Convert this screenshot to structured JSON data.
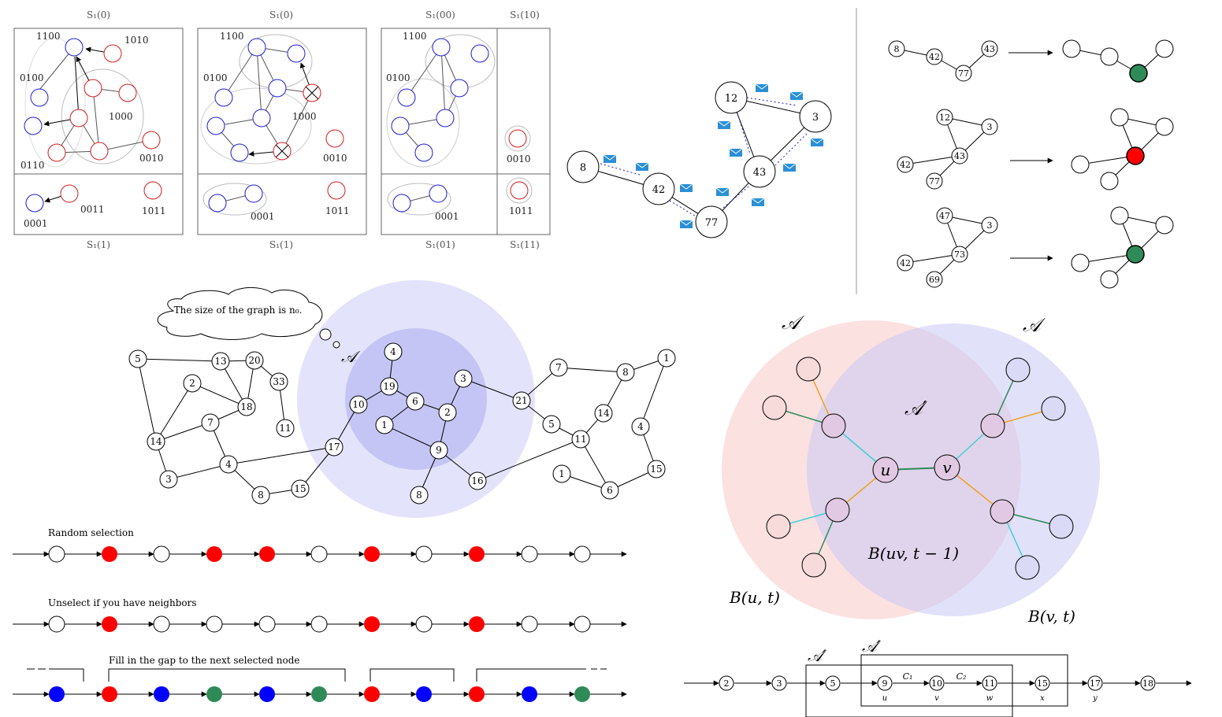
{
  "p1": {
    "top_labels": [
      "S₁(0)",
      "S₁(0)",
      "S₁(00)",
      "S₁(10)"
    ],
    "bottom_labels": [
      "S₁(1)",
      "S₁(1)",
      "S₁(01)",
      "S₁(11)"
    ],
    "a": [
      "1100",
      "1010",
      "0100",
      "1000",
      "0110",
      "0010",
      "0011",
      "1011",
      "0001"
    ],
    "b": [
      "1100",
      "0100",
      "1000",
      "0010",
      "0001",
      "1011"
    ],
    "c": [
      "1100",
      "0100",
      "0010",
      "0001",
      "1011"
    ]
  },
  "p2": {
    "nodes": [
      "8",
      "42",
      "77",
      "12",
      "3",
      "43"
    ]
  },
  "p3": {
    "rows": [
      {
        "left": [
          "8",
          "42",
          "77",
          "43"
        ],
        "result": "#2e8b57"
      },
      {
        "left": [
          "12",
          "3",
          "43",
          "42",
          "77"
        ],
        "result": "#ff0000"
      },
      {
        "left": [
          "47",
          "3",
          "73",
          "42",
          "69"
        ],
        "result": "#2e8b57"
      }
    ]
  },
  "p4": {
    "thought": "The size of the graph is n₀.",
    "a_label": "𝒜",
    "nodes": [
      "5",
      "13",
      "20",
      "2",
      "33",
      "18",
      "7",
      "11",
      "14",
      "4",
      "3",
      "8",
      "15",
      "17",
      "10",
      "19",
      "4",
      "6",
      "2",
      "1",
      "9",
      "3",
      "21",
      "16",
      "8",
      "7",
      "8",
      "1",
      "14",
      "5",
      "11",
      "4",
      "1",
      "15",
      "6"
    ]
  },
  "p5": {
    "r1": "Random selection",
    "r2": "Unselect if you have neighbors",
    "r3": "Fill in the gap to the next selected node",
    "row1_colors": [
      "w",
      "r",
      "w",
      "r",
      "r",
      "w",
      "r",
      "w",
      "r",
      "w",
      "w"
    ],
    "row2_colors": [
      "w",
      "r",
      "w",
      "w",
      "w",
      "w",
      "r",
      "w",
      "r",
      "w",
      "w"
    ],
    "row3_colors": [
      "b",
      "r",
      "b",
      "g",
      "b",
      "g",
      "r",
      "b",
      "r",
      "b",
      "g"
    ],
    "palette": {
      "w": "#ffffff",
      "r": "#ff0000",
      "b": "#0000ff",
      "g": "#2e8b57"
    }
  },
  "p6": {
    "a_left": "𝒜",
    "a_right": "𝒜",
    "a_prime": "𝒜′",
    "u": "u",
    "v": "v",
    "buv": "B(uv, t − 1)",
    "bu": "B(u, t)",
    "bv": "B(v, t)"
  },
  "p7": {
    "nodes": [
      "2",
      "3",
      "5",
      "9",
      "10",
      "11",
      "15",
      "17",
      "18"
    ],
    "sub": [
      "u",
      "v",
      "w",
      "x",
      "y"
    ],
    "c1": "C₁",
    "c2": "C₂",
    "a1": "𝒜′",
    "a2": "𝒜′"
  }
}
